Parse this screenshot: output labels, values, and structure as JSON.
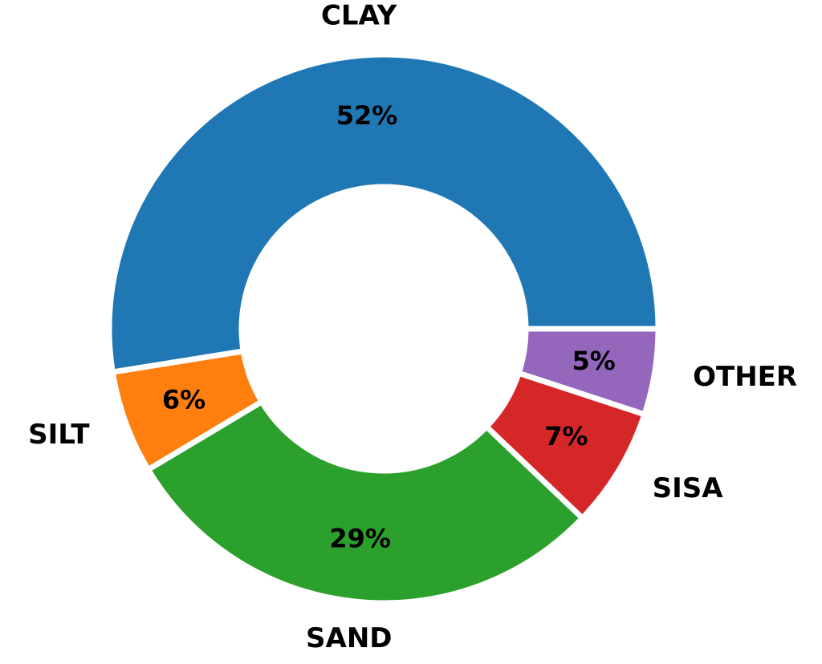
{
  "chart_data": {
    "type": "pie",
    "donut": true,
    "categories": [
      "CLAY",
      "SILT",
      "SAND",
      "SISA",
      "OTHER"
    ],
    "values": [
      52,
      6,
      29,
      7,
      5
    ],
    "value_labels": [
      "52%",
      "6%",
      "29%",
      "7%",
      "5%"
    ],
    "colors": [
      "#1f77b4",
      "#ff7f0e",
      "#2ca02c",
      "#d62728",
      "#9467bd"
    ],
    "start": "right",
    "direction": "counterclockwise",
    "legend": "none"
  }
}
